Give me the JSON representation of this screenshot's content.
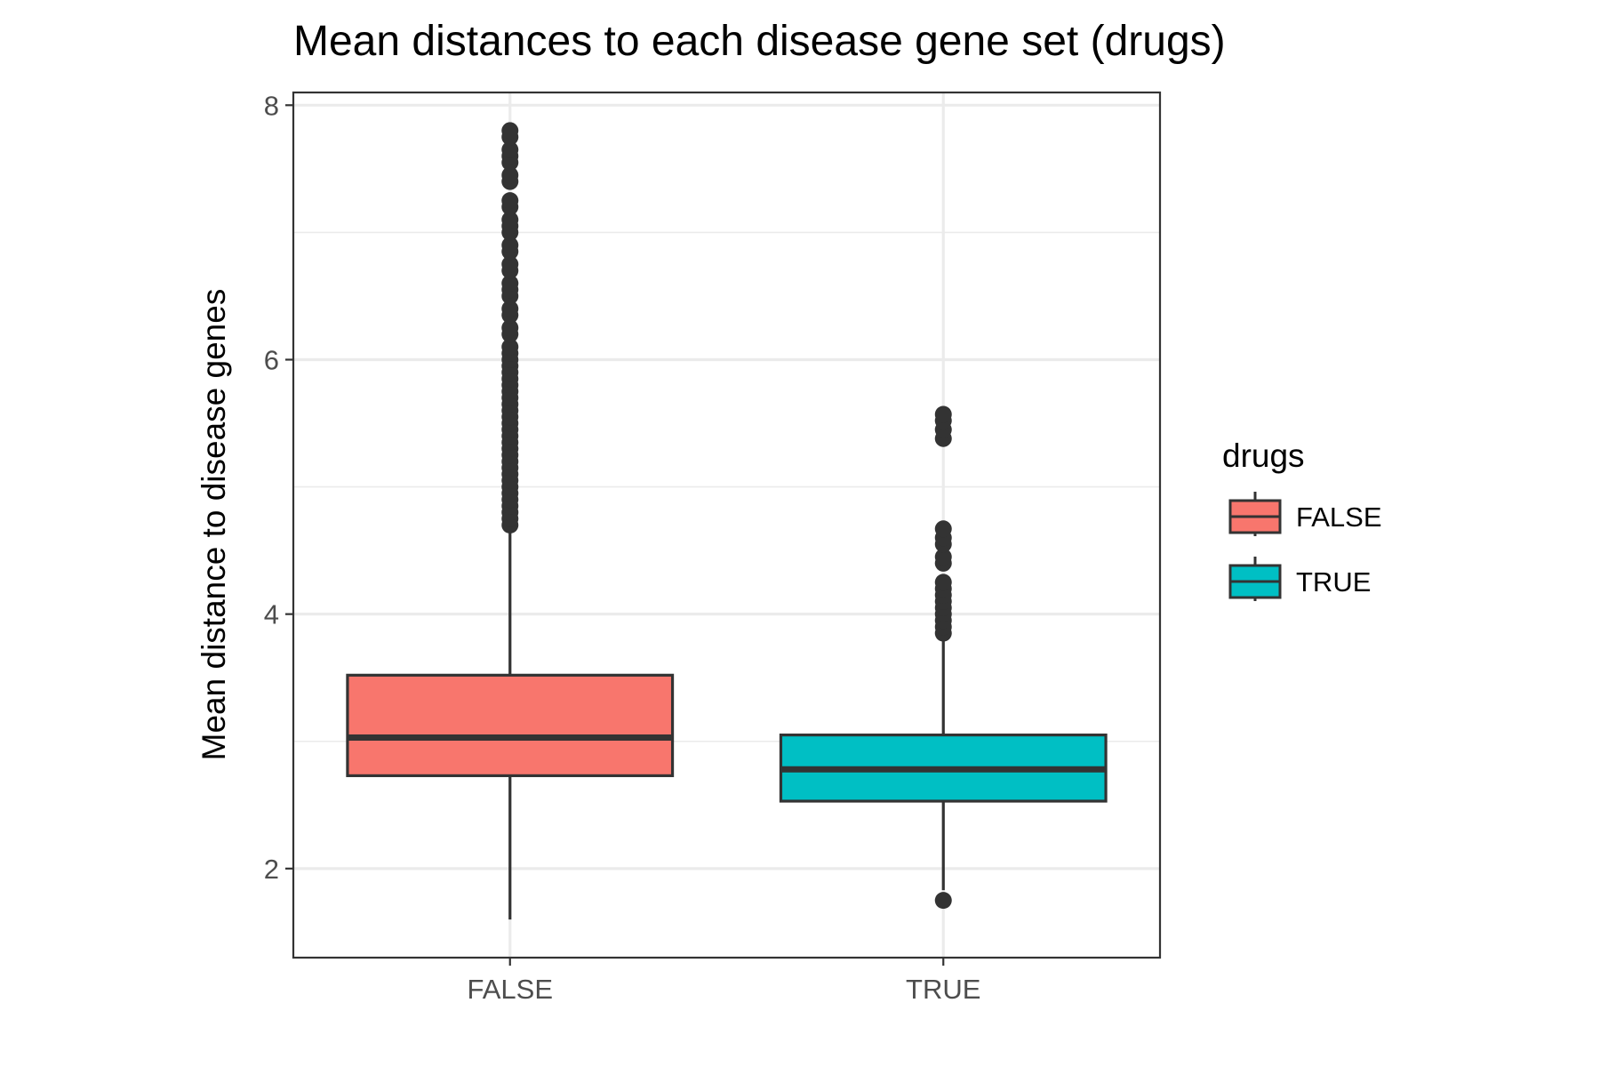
{
  "chart_data": {
    "type": "boxplot",
    "title": "Mean distances to each disease gene set (drugs)",
    "xlabel": "",
    "ylabel": "Mean distance to disease genes",
    "categories": [
      "FALSE",
      "TRUE"
    ],
    "ylim": [
      1.3,
      8.1
    ],
    "yticks": [
      2,
      4,
      6,
      8
    ],
    "grid": true,
    "legend": {
      "title": "drugs",
      "position": "right",
      "entries": [
        "FALSE",
        "TRUE"
      ]
    },
    "colors": {
      "FALSE": "#F8766D",
      "TRUE": "#00BFC4",
      "outline": "#333333",
      "grid": "#EBEBEB",
      "panel_border": "#333333"
    },
    "boxes": [
      {
        "category": "FALSE",
        "whisker_low": 1.6,
        "q1": 2.73,
        "median": 3.03,
        "q3": 3.52,
        "whisker_high": 4.67,
        "outliers": [
          4.7,
          4.75,
          4.8,
          4.85,
          4.9,
          4.95,
          5.0,
          5.05,
          5.1,
          5.15,
          5.2,
          5.25,
          5.3,
          5.35,
          5.4,
          5.45,
          5.5,
          5.55,
          5.6,
          5.65,
          5.7,
          5.75,
          5.8,
          5.85,
          5.9,
          5.95,
          6.0,
          6.05,
          6.1,
          6.2,
          6.25,
          6.35,
          6.4,
          6.5,
          6.55,
          6.6,
          6.7,
          6.75,
          6.85,
          6.9,
          7.0,
          7.05,
          7.1,
          7.2,
          7.25,
          7.4,
          7.45,
          7.55,
          7.6,
          7.65,
          7.75,
          7.8
        ]
      },
      {
        "category": "TRUE",
        "whisker_low": 1.83,
        "q1": 2.53,
        "median": 2.78,
        "q3": 3.05,
        "whisker_high": 3.82,
        "outliers": [
          1.75,
          3.85,
          3.9,
          3.95,
          4.0,
          4.05,
          4.1,
          4.15,
          4.2,
          4.25,
          4.4,
          4.45,
          4.55,
          4.6,
          4.67,
          5.38,
          5.45,
          5.52,
          5.57
        ]
      }
    ]
  }
}
